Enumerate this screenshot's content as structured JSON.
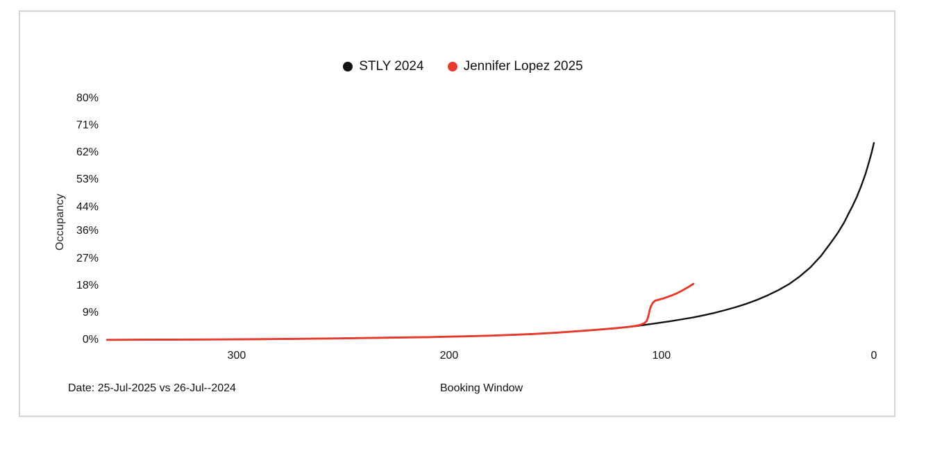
{
  "chart_data": {
    "type": "line",
    "title": "",
    "xlabel": "Booking Window",
    "ylabel": "Occupancy",
    "annotation": "Date: 25-Jul-2025 vs 26-Jul--2024",
    "legend_position": "top-center",
    "x_axis": {
      "ticks": [
        "300",
        "200",
        "100",
        "0"
      ],
      "tick_values": [
        300,
        200,
        100,
        0
      ],
      "range": [
        365,
        0
      ],
      "reversed": true,
      "grid": false
    },
    "y_axis": {
      "tick_labels": [
        "0%",
        "9%",
        "18%",
        "27%",
        "36%",
        "44%",
        "53%",
        "62%",
        "71%",
        "80%"
      ],
      "tick_values": [
        0,
        9,
        18,
        27,
        36,
        44,
        53,
        62,
        71,
        80
      ],
      "range": [
        0,
        80
      ],
      "grid": false
    },
    "series": [
      {
        "name": "STLY 2024",
        "color": "#111111",
        "stroke_width": 2.4,
        "points": [
          [
            361,
            0.05
          ],
          [
            345,
            0.1
          ],
          [
            330,
            0.12
          ],
          [
            315,
            0.15
          ],
          [
            300,
            0.2
          ],
          [
            285,
            0.3
          ],
          [
            270,
            0.4
          ],
          [
            255,
            0.5
          ],
          [
            240,
            0.65
          ],
          [
            225,
            0.8
          ],
          [
            210,
            0.95
          ],
          [
            200,
            1.1
          ],
          [
            190,
            1.25
          ],
          [
            180,
            1.45
          ],
          [
            170,
            1.7
          ],
          [
            160,
            2.0
          ],
          [
            150,
            2.4
          ],
          [
            140,
            2.9
          ],
          [
            130,
            3.4
          ],
          [
            120,
            4.0
          ],
          [
            112,
            4.6
          ],
          [
            106,
            5.2
          ],
          [
            100,
            5.8
          ],
          [
            95,
            6.3
          ],
          [
            90,
            6.9
          ],
          [
            85,
            7.5
          ],
          [
            80,
            8.2
          ],
          [
            75,
            9.0
          ],
          [
            70,
            9.9
          ],
          [
            65,
            10.9
          ],
          [
            60,
            12.0
          ],
          [
            55,
            13.3
          ],
          [
            50,
            14.8
          ],
          [
            45,
            16.5
          ],
          [
            40,
            18.5
          ],
          [
            35,
            21.0
          ],
          [
            30,
            24.0
          ],
          [
            25,
            27.8
          ],
          [
            20,
            32.5
          ],
          [
            17,
            35.5
          ],
          [
            14,
            39.0
          ],
          [
            12,
            41.8
          ],
          [
            10,
            44.5
          ],
          [
            8,
            47.5
          ],
          [
            6,
            51.0
          ],
          [
            4,
            55.0
          ],
          [
            3,
            57.3
          ],
          [
            2,
            59.8
          ],
          [
            1,
            62.3
          ],
          [
            0,
            65.3
          ]
        ]
      },
      {
        "name": "Jennifer Lopez 2025",
        "color": "#e63a2c",
        "stroke_width": 2.9,
        "points": [
          [
            361,
            0.05
          ],
          [
            345,
            0.1
          ],
          [
            330,
            0.12
          ],
          [
            315,
            0.15
          ],
          [
            300,
            0.2
          ],
          [
            285,
            0.3
          ],
          [
            270,
            0.4
          ],
          [
            255,
            0.5
          ],
          [
            240,
            0.65
          ],
          [
            225,
            0.8
          ],
          [
            210,
            0.95
          ],
          [
            200,
            1.1
          ],
          [
            190,
            1.25
          ],
          [
            180,
            1.45
          ],
          [
            170,
            1.7
          ],
          [
            160,
            2.0
          ],
          [
            150,
            2.4
          ],
          [
            140,
            2.9
          ],
          [
            130,
            3.4
          ],
          [
            120,
            4.0
          ],
          [
            115,
            4.4
          ],
          [
            112,
            4.7
          ],
          [
            110,
            5.0
          ],
          [
            108,
            5.6
          ],
          [
            107,
            6.3
          ],
          [
            106.5,
            7.2
          ],
          [
            106,
            8.5
          ],
          [
            105.5,
            10.0
          ],
          [
            105,
            11.2
          ],
          [
            104,
            12.4
          ],
          [
            103,
            13.0
          ],
          [
            101,
            13.4
          ],
          [
            99,
            13.8
          ],
          [
            97,
            14.3
          ],
          [
            95,
            14.8
          ],
          [
            93,
            15.4
          ],
          [
            91,
            16.1
          ],
          [
            89,
            16.9
          ],
          [
            87,
            17.7
          ],
          [
            85,
            18.6
          ]
        ]
      }
    ]
  }
}
